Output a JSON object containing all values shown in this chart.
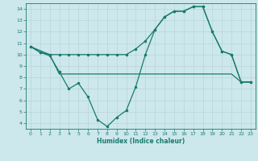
{
  "xlabel": "Humidex (Indice chaleur)",
  "bg_color": "#cce8ec",
  "grid_color": "#b8d4d8",
  "line_color": "#1a7a6e",
  "xlim": [
    -0.5,
    23.5
  ],
  "ylim": [
    3.5,
    14.5
  ],
  "xticks": [
    0,
    1,
    2,
    3,
    4,
    5,
    6,
    7,
    8,
    9,
    10,
    11,
    12,
    13,
    14,
    15,
    16,
    17,
    18,
    19,
    20,
    21,
    22,
    23
  ],
  "yticks": [
    4,
    5,
    6,
    7,
    8,
    9,
    10,
    11,
    12,
    13,
    14
  ],
  "line1_x": [
    0,
    1,
    2,
    3,
    4,
    5,
    6,
    7,
    8,
    9,
    10,
    11,
    12,
    13,
    14,
    15,
    16,
    17,
    18,
    19,
    20,
    21,
    22,
    23
  ],
  "line1_y": [
    10.7,
    10.2,
    10.0,
    10.0,
    10.0,
    10.0,
    10.0,
    10.0,
    10.0,
    10.0,
    10.0,
    10.5,
    11.2,
    12.2,
    13.3,
    13.8,
    13.8,
    14.2,
    14.2,
    12.0,
    10.3,
    10.0,
    7.6,
    7.6
  ],
  "line2_x": [
    0,
    1,
    2,
    3,
    4,
    5,
    6,
    7,
    8,
    9,
    10,
    11,
    12,
    13,
    14,
    15,
    16,
    17,
    18,
    19,
    20,
    21,
    22,
    23
  ],
  "line2_y": [
    10.7,
    10.2,
    9.9,
    8.5,
    7.0,
    7.5,
    6.3,
    4.3,
    3.7,
    4.5,
    5.1,
    7.2,
    10.0,
    12.2,
    13.3,
    13.8,
    13.8,
    14.2,
    14.2,
    12.0,
    10.3,
    10.0,
    7.6,
    7.6
  ],
  "line3_x": [
    0,
    2,
    3,
    10,
    11,
    12,
    13,
    14,
    15,
    16,
    17,
    18,
    19,
    21,
    22,
    23
  ],
  "line3_y": [
    10.7,
    10.0,
    8.3,
    8.3,
    8.3,
    8.3,
    8.3,
    8.3,
    8.3,
    8.3,
    8.3,
    8.3,
    8.3,
    8.3,
    7.6,
    7.6
  ]
}
